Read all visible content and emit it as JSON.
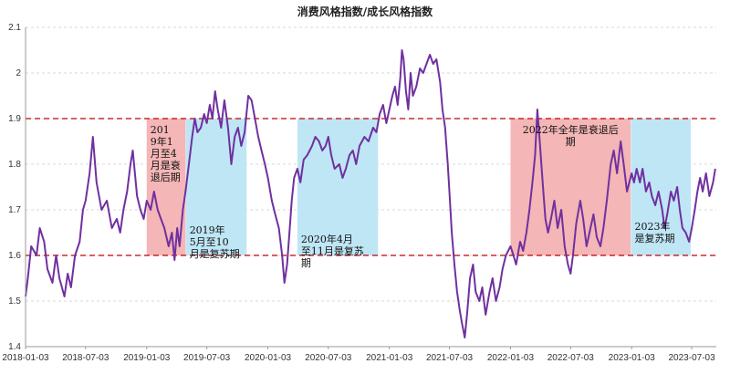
{
  "chart_data": {
    "type": "line",
    "title": "消费风格指数/成长风格指数",
    "xlabel": "",
    "ylabel": "",
    "ylim": [
      1.4,
      2.1
    ],
    "y_ticks": [
      "1.4",
      "1.5",
      "1.6",
      "1.7",
      "1.8",
      "1.9",
      "2",
      "2.1"
    ],
    "x_ticks": [
      "2018-01-03",
      "2018-07-03",
      "2019-01-03",
      "2019-07-03",
      "2020-01-03",
      "2020-07-03",
      "2021-01-03",
      "2021-07-03",
      "2022-01-03",
      "2022-07-03",
      "2023-01-03",
      "2023-07-03"
    ],
    "x_range": [
      "2018-01-03",
      "2023-09-15"
    ],
    "grid": true,
    "series": [
      {
        "color": "#7030a0",
        "points": [
          [
            "2018-01-03",
            1.51
          ],
          [
            "2018-01-10",
            1.55
          ],
          [
            "2018-01-20",
            1.62
          ],
          [
            "2018-02-05",
            1.6
          ],
          [
            "2018-02-15",
            1.66
          ],
          [
            "2018-02-28",
            1.63
          ],
          [
            "2018-03-10",
            1.57
          ],
          [
            "2018-03-25",
            1.54
          ],
          [
            "2018-04-05",
            1.6
          ],
          [
            "2018-04-15",
            1.55
          ],
          [
            "2018-04-30",
            1.51
          ],
          [
            "2018-05-10",
            1.56
          ],
          [
            "2018-05-20",
            1.53
          ],
          [
            "2018-06-01",
            1.6
          ],
          [
            "2018-06-15",
            1.63
          ],
          [
            "2018-06-25",
            1.7
          ],
          [
            "2018-07-03",
            1.72
          ],
          [
            "2018-07-15",
            1.78
          ],
          [
            "2018-07-25",
            1.86
          ],
          [
            "2018-08-05",
            1.76
          ],
          [
            "2018-08-20",
            1.7
          ],
          [
            "2018-09-05",
            1.72
          ],
          [
            "2018-09-20",
            1.66
          ],
          [
            "2018-10-05",
            1.68
          ],
          [
            "2018-10-15",
            1.65
          ],
          [
            "2018-10-25",
            1.7
          ],
          [
            "2018-11-05",
            1.74
          ],
          [
            "2018-11-15",
            1.8
          ],
          [
            "2018-11-22",
            1.83
          ],
          [
            "2018-12-05",
            1.73
          ],
          [
            "2018-12-15",
            1.7
          ],
          [
            "2018-12-25",
            1.68
          ],
          [
            "2019-01-03",
            1.72
          ],
          [
            "2019-01-15",
            1.7
          ],
          [
            "2019-01-25",
            1.74
          ],
          [
            "2019-02-05",
            1.7
          ],
          [
            "2019-02-15",
            1.68
          ],
          [
            "2019-02-25",
            1.66
          ],
          [
            "2019-03-10",
            1.62
          ],
          [
            "2019-03-20",
            1.65
          ],
          [
            "2019-03-28",
            1.59
          ],
          [
            "2019-04-05",
            1.66
          ],
          [
            "2019-04-12",
            1.62
          ],
          [
            "2019-04-22",
            1.7
          ],
          [
            "2019-04-30",
            1.74
          ],
          [
            "2019-05-10",
            1.8
          ],
          [
            "2019-05-20",
            1.86
          ],
          [
            "2019-05-28",
            1.9
          ],
          [
            "2019-06-05",
            1.87
          ],
          [
            "2019-06-15",
            1.88
          ],
          [
            "2019-06-25",
            1.91
          ],
          [
            "2019-07-03",
            1.89
          ],
          [
            "2019-07-12",
            1.93
          ],
          [
            "2019-07-20",
            1.9
          ],
          [
            "2019-07-28",
            1.96
          ],
          [
            "2019-08-05",
            1.92
          ],
          [
            "2019-08-15",
            1.88
          ],
          [
            "2019-08-25",
            1.94
          ],
          [
            "2019-09-05",
            1.88
          ],
          [
            "2019-09-15",
            1.8
          ],
          [
            "2019-09-25",
            1.86
          ],
          [
            "2019-10-05",
            1.88
          ],
          [
            "2019-10-15",
            1.84
          ],
          [
            "2019-10-25",
            1.87
          ],
          [
            "2019-11-05",
            1.95
          ],
          [
            "2019-11-15",
            1.94
          ],
          [
            "2019-11-25",
            1.9
          ],
          [
            "2019-12-05",
            1.86
          ],
          [
            "2019-12-15",
            1.83
          ],
          [
            "2019-12-25",
            1.8
          ],
          [
            "2020-01-03",
            1.77
          ],
          [
            "2020-01-15",
            1.72
          ],
          [
            "2020-01-25",
            1.69
          ],
          [
            "2020-02-05",
            1.66
          ],
          [
            "2020-02-15",
            1.6
          ],
          [
            "2020-02-22",
            1.54
          ],
          [
            "2020-03-01",
            1.58
          ],
          [
            "2020-03-08",
            1.65
          ],
          [
            "2020-03-15",
            1.72
          ],
          [
            "2020-03-22",
            1.77
          ],
          [
            "2020-04-01",
            1.79
          ],
          [
            "2020-04-10",
            1.76
          ],
          [
            "2020-04-20",
            1.81
          ],
          [
            "2020-05-01",
            1.82
          ],
          [
            "2020-05-15",
            1.84
          ],
          [
            "2020-05-25",
            1.86
          ],
          [
            "2020-06-05",
            1.85
          ],
          [
            "2020-06-15",
            1.83
          ],
          [
            "2020-06-25",
            1.84
          ],
          [
            "2020-07-03",
            1.86
          ],
          [
            "2020-07-12",
            1.82
          ],
          [
            "2020-07-22",
            1.79
          ],
          [
            "2020-08-05",
            1.8
          ],
          [
            "2020-08-15",
            1.77
          ],
          [
            "2020-08-25",
            1.79
          ],
          [
            "2020-09-05",
            1.82
          ],
          [
            "2020-09-15",
            1.83
          ],
          [
            "2020-09-25",
            1.8
          ],
          [
            "2020-10-05",
            1.84
          ],
          [
            "2020-10-20",
            1.86
          ],
          [
            "2020-11-01",
            1.85
          ],
          [
            "2020-11-15",
            1.88
          ],
          [
            "2020-11-25",
            1.87
          ],
          [
            "2020-12-05",
            1.91
          ],
          [
            "2020-12-15",
            1.93
          ],
          [
            "2020-12-25",
            1.89
          ],
          [
            "2021-01-03",
            1.92
          ],
          [
            "2021-01-12",
            1.95
          ],
          [
            "2021-01-20",
            1.97
          ],
          [
            "2021-01-28",
            1.93
          ],
          [
            "2021-02-05",
            1.99
          ],
          [
            "2021-02-10",
            2.05
          ],
          [
            "2021-02-15",
            2.03
          ],
          [
            "2021-02-22",
            1.96
          ],
          [
            "2021-03-01",
            1.92
          ],
          [
            "2021-03-08",
            2.0
          ],
          [
            "2021-03-15",
            1.95
          ],
          [
            "2021-03-25",
            1.97
          ],
          [
            "2021-04-05",
            2.01
          ],
          [
            "2021-04-15",
            2.0
          ],
          [
            "2021-04-25",
            2.02
          ],
          [
            "2021-05-05",
            2.04
          ],
          [
            "2021-05-15",
            2.02
          ],
          [
            "2021-05-25",
            2.03
          ],
          [
            "2021-06-05",
            1.98
          ],
          [
            "2021-06-12",
            1.92
          ],
          [
            "2021-06-20",
            1.88
          ],
          [
            "2021-06-28",
            1.8
          ],
          [
            "2021-07-03",
            1.74
          ],
          [
            "2021-07-10",
            1.65
          ],
          [
            "2021-07-18",
            1.58
          ],
          [
            "2021-07-26",
            1.52
          ],
          [
            "2021-08-03",
            1.48
          ],
          [
            "2021-08-10",
            1.45
          ],
          [
            "2021-08-18",
            1.42
          ],
          [
            "2021-08-25",
            1.47
          ],
          [
            "2021-09-03",
            1.55
          ],
          [
            "2021-09-12",
            1.58
          ],
          [
            "2021-09-20",
            1.52
          ],
          [
            "2021-10-01",
            1.5
          ],
          [
            "2021-10-10",
            1.53
          ],
          [
            "2021-10-20",
            1.47
          ],
          [
            "2021-11-01",
            1.52
          ],
          [
            "2021-11-10",
            1.55
          ],
          [
            "2021-11-20",
            1.5
          ],
          [
            "2021-12-01",
            1.53
          ],
          [
            "2021-12-10",
            1.57
          ],
          [
            "2021-12-20",
            1.6
          ],
          [
            "2022-01-03",
            1.62
          ],
          [
            "2022-01-12",
            1.6
          ],
          [
            "2022-01-20",
            1.58
          ],
          [
            "2022-02-01",
            1.63
          ],
          [
            "2022-02-10",
            1.61
          ],
          [
            "2022-02-20",
            1.65
          ],
          [
            "2022-03-01",
            1.7
          ],
          [
            "2022-03-10",
            1.76
          ],
          [
            "2022-03-18",
            1.82
          ],
          [
            "2022-03-25",
            1.92
          ],
          [
            "2022-04-01",
            1.85
          ],
          [
            "2022-04-10",
            1.76
          ],
          [
            "2022-04-18",
            1.68
          ],
          [
            "2022-04-26",
            1.65
          ],
          [
            "2022-05-05",
            1.68
          ],
          [
            "2022-05-15",
            1.72
          ],
          [
            "2022-05-25",
            1.66
          ],
          [
            "2022-06-05",
            1.7
          ],
          [
            "2022-06-15",
            1.62
          ],
          [
            "2022-06-25",
            1.58
          ],
          [
            "2022-07-03",
            1.56
          ],
          [
            "2022-07-10",
            1.6
          ],
          [
            "2022-07-20",
            1.67
          ],
          [
            "2022-08-01",
            1.72
          ],
          [
            "2022-08-10",
            1.68
          ],
          [
            "2022-08-20",
            1.62
          ],
          [
            "2022-09-01",
            1.66
          ],
          [
            "2022-09-10",
            1.69
          ],
          [
            "2022-09-20",
            1.64
          ],
          [
            "2022-10-01",
            1.62
          ],
          [
            "2022-10-10",
            1.66
          ],
          [
            "2022-10-20",
            1.72
          ],
          [
            "2022-11-01",
            1.8
          ],
          [
            "2022-11-10",
            1.83
          ],
          [
            "2022-11-20",
            1.78
          ],
          [
            "2022-12-01",
            1.85
          ],
          [
            "2022-12-10",
            1.8
          ],
          [
            "2022-12-20",
            1.74
          ],
          [
            "2023-01-03",
            1.78
          ],
          [
            "2023-01-10",
            1.76
          ],
          [
            "2023-01-18",
            1.79
          ],
          [
            "2023-01-28",
            1.76
          ],
          [
            "2023-02-05",
            1.79
          ],
          [
            "2023-02-15",
            1.74
          ],
          [
            "2023-02-25",
            1.76
          ],
          [
            "2023-03-05",
            1.73
          ],
          [
            "2023-03-15",
            1.71
          ],
          [
            "2023-03-25",
            1.74
          ],
          [
            "2023-04-05",
            1.7
          ],
          [
            "2023-04-12",
            1.66
          ],
          [
            "2023-04-20",
            1.69
          ],
          [
            "2023-05-01",
            1.74
          ],
          [
            "2023-05-10",
            1.72
          ],
          [
            "2023-05-20",
            1.75
          ],
          [
            "2023-05-28",
            1.7
          ],
          [
            "2023-06-05",
            1.66
          ],
          [
            "2023-06-15",
            1.65
          ],
          [
            "2023-06-25",
            1.63
          ],
          [
            "2023-07-03",
            1.66
          ],
          [
            "2023-07-12",
            1.7
          ],
          [
            "2023-07-20",
            1.74
          ],
          [
            "2023-07-28",
            1.77
          ],
          [
            "2023-08-05",
            1.74
          ],
          [
            "2023-08-15",
            1.78
          ],
          [
            "2023-08-25",
            1.73
          ],
          [
            "2023-09-05",
            1.76
          ],
          [
            "2023-09-12",
            1.79
          ]
        ]
      }
    ],
    "reference_lines": [
      {
        "y": 1.9,
        "color": "#c00000",
        "style": "dashed"
      },
      {
        "y": 1.6,
        "color": "#c00000",
        "style": "dashed"
      }
    ],
    "regions": [
      {
        "start": "2019-01-03",
        "end": "2019-04-30",
        "y_range": [
          1.6,
          1.9
        ],
        "color": "#f4b6b6",
        "label": "2019年1月至4月是衰退后期"
      },
      {
        "start": "2019-05-01",
        "end": "2019-10-31",
        "y_range": [
          1.6,
          1.9
        ],
        "color": "#bfe6f5",
        "label": "2019年5月至10月是复苏期"
      },
      {
        "start": "2020-04-01",
        "end": "2020-11-30",
        "y_range": [
          1.6,
          1.9
        ],
        "color": "#bfe6f5",
        "label": "2020年4月至11月是复苏期"
      },
      {
        "start": "2022-01-03",
        "end": "2022-12-31",
        "y_range": [
          1.6,
          1.9
        ],
        "color": "#f4b6b6",
        "label": "2022年全年是衰退后期"
      },
      {
        "start": "2023-01-01",
        "end": "2023-06-30",
        "y_range": [
          1.6,
          1.9
        ],
        "color": "#bfe6f5",
        "label": "2023年是复苏期"
      }
    ]
  }
}
